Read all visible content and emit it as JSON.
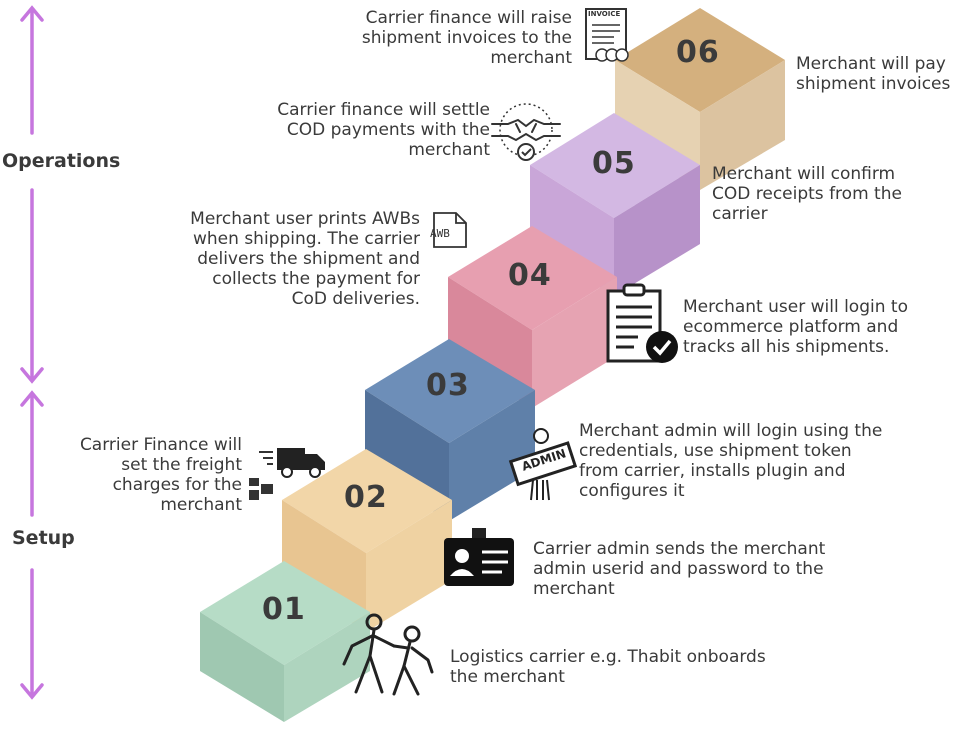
{
  "sections": {
    "operations": "Operations",
    "setup": "Setup"
  },
  "colors": {
    "arrow": "#c676de",
    "step01": "#a9d3bd",
    "step02": "#efcf9e",
    "step03": "#5e7fa8",
    "step04": "#e391a1",
    "step05": "#c9a6d8",
    "step06": "#e7d3b4"
  },
  "steps": [
    {
      "number": "01",
      "text": "Logistics carrier e.g. Thabit onboards\nthe merchant",
      "icon": "onboarding-people-icon"
    },
    {
      "number": "02",
      "text": "Carrier admin sends the merchant\nadmin userid and password to the\nmerchant",
      "icon": "id-card-icon"
    },
    {
      "number": "03",
      "text": "Merchant admin will login using the\ncredentials, use shipment token\nfrom carrier, installs plugin and\nconfigures it",
      "icon": "admin-sign-icon"
    },
    {
      "number": "04",
      "text": "Merchant user will login to\necommerce platform and\ntracks all his shipments.",
      "icon": "checklist-icon"
    },
    {
      "number": "05",
      "text": "Merchant will confirm\nCOD receipts from the\ncarrier",
      "icon": "handshake-icon"
    },
    {
      "number": "06",
      "text": "Merchant will pay\nshipment invoices",
      "icon": "invoice-icon"
    }
  ],
  "left_notes": {
    "freight": "Carrier Finance will\nset the freight\ncharges for the\nmerchant",
    "awb": "Merchant user prints AWBs\nwhen shipping. The carrier\ndelivers the shipment and\ncollects the payment for\nCoD deliveries.",
    "settle": "Carrier finance will settle\nCOD payments with the\nmerchant",
    "invoice": "Carrier finance will raise\nshipment invoices to the\nmerchant"
  },
  "icon_labels": {
    "awb": "AWB",
    "admin": "ADMIN",
    "invoice": "INVOICE"
  }
}
